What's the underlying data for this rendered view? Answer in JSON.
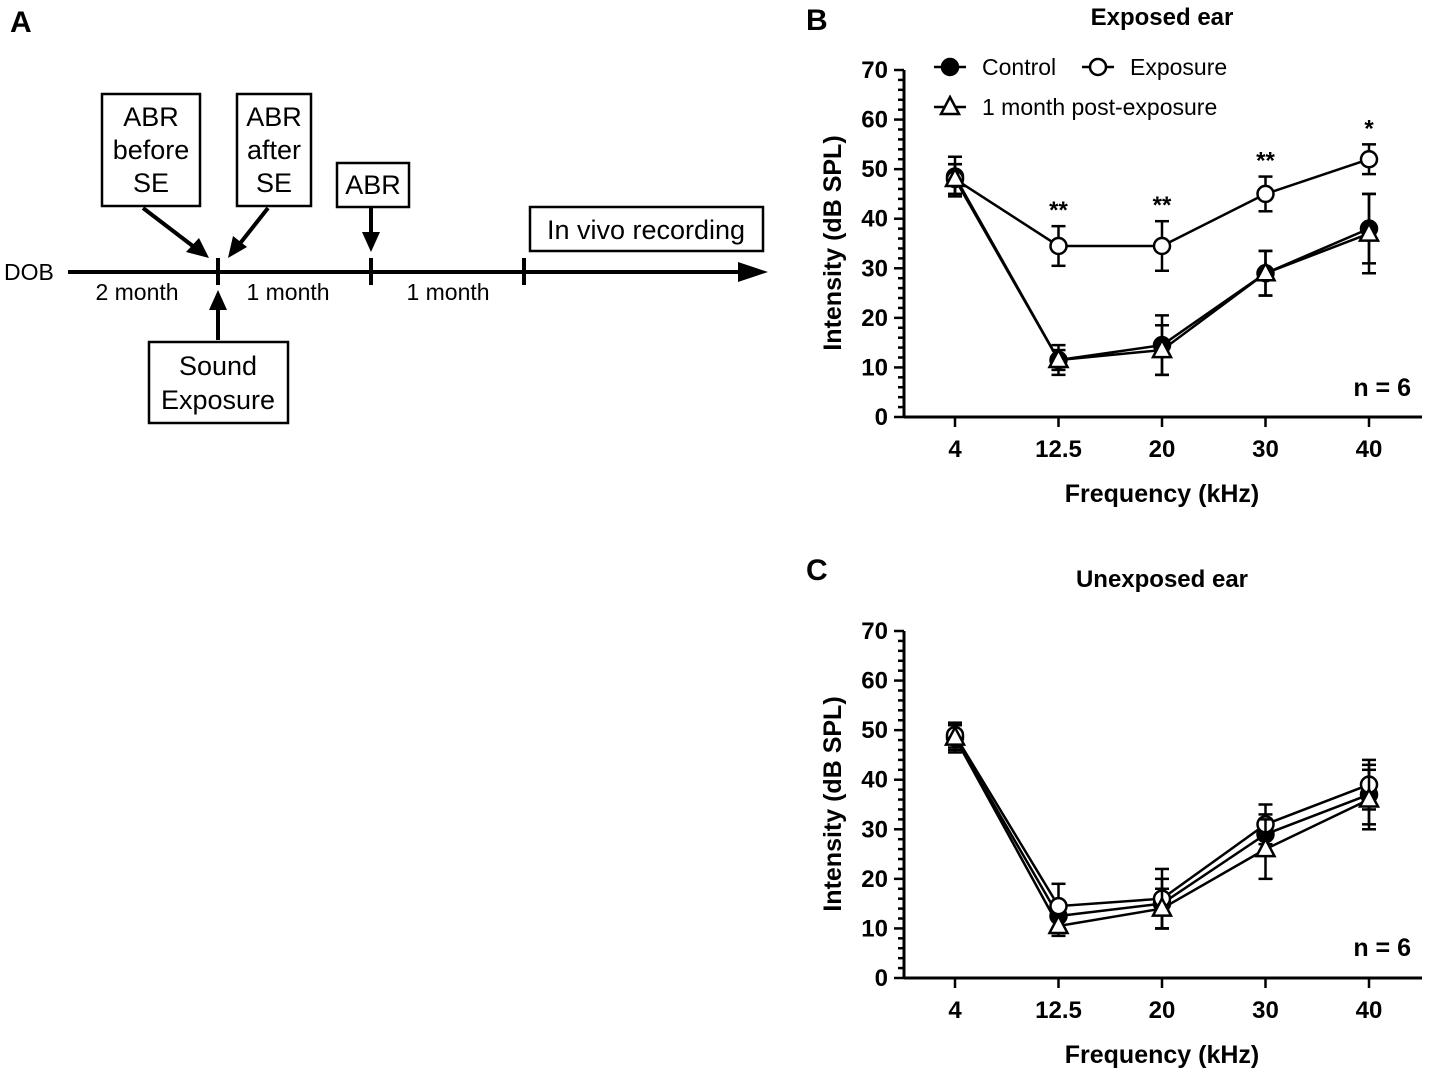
{
  "panel_a": {
    "letter": "A",
    "dob": "DOB",
    "intervals": [
      "2 month",
      "1 month",
      "1 month"
    ],
    "box_abr_before": [
      "ABR",
      "before",
      "SE"
    ],
    "box_abr_after": [
      "ABR",
      "after",
      "SE"
    ],
    "box_abr": "ABR",
    "box_recording": "In vivo recording",
    "box_sound": [
      "Sound",
      "Exposure"
    ]
  },
  "chart_data": [
    {
      "panel": "B",
      "type": "line",
      "title": "Exposed ear",
      "xlabel": "Frequency (kHz)",
      "ylabel": "Intensity (dB SPL)",
      "categories": [
        "4",
        "12.5",
        "20",
        "30",
        "40"
      ],
      "ylim": [
        0,
        70
      ],
      "yticks": [
        0,
        10,
        20,
        30,
        40,
        50,
        60,
        70
      ],
      "legend": [
        "Control",
        "Exposure",
        "1 month post-exposure"
      ],
      "series": [
        {
          "name": "Control",
          "marker": "filled-circle",
          "values": [
            48.5,
            11.5,
            14.5,
            29,
            38
          ],
          "errors": [
            4,
            3,
            6,
            4.5,
            7
          ]
        },
        {
          "name": "Exposure",
          "marker": "open-circle",
          "values": [
            48,
            34.5,
            34.5,
            45,
            52
          ],
          "errors": [
            3,
            4,
            5,
            3.5,
            3
          ]
        },
        {
          "name": "1 month post-exposure",
          "marker": "open-triangle",
          "values": [
            48,
            11.5,
            13.5,
            29,
            37
          ],
          "errors": [
            3,
            2,
            5,
            4.5,
            8
          ]
        }
      ],
      "significance": [
        "",
        "**",
        "**",
        "**",
        "*"
      ],
      "n_label": "n = 6"
    },
    {
      "panel": "C",
      "type": "line",
      "title": "Unexposed ear",
      "xlabel": "Frequency (kHz)",
      "ylabel": "Intensity (dB SPL)",
      "categories": [
        "4",
        "12.5",
        "20",
        "30",
        "40"
      ],
      "ylim": [
        0,
        70
      ],
      "yticks": [
        0,
        10,
        20,
        30,
        40,
        50,
        60,
        70
      ],
      "series": [
        {
          "name": "Control",
          "marker": "filled-circle",
          "values": [
            48.5,
            12.5,
            15,
            29,
            37
          ],
          "errors": [
            3,
            3,
            5,
            4,
            6
          ]
        },
        {
          "name": "Exposure",
          "marker": "open-circle",
          "values": [
            49,
            14.5,
            16,
            31,
            39
          ],
          "errors": [
            2.5,
            4.5,
            6,
            4,
            5
          ]
        },
        {
          "name": "1 month post-exposure",
          "marker": "open-triangle",
          "values": [
            48.5,
            10.5,
            14,
            26,
            36
          ],
          "errors": [
            2.5,
            2,
            4,
            6,
            6
          ]
        }
      ],
      "significance": [
        "",
        "",
        "",
        "",
        ""
      ],
      "n_label": "n = 6"
    }
  ]
}
